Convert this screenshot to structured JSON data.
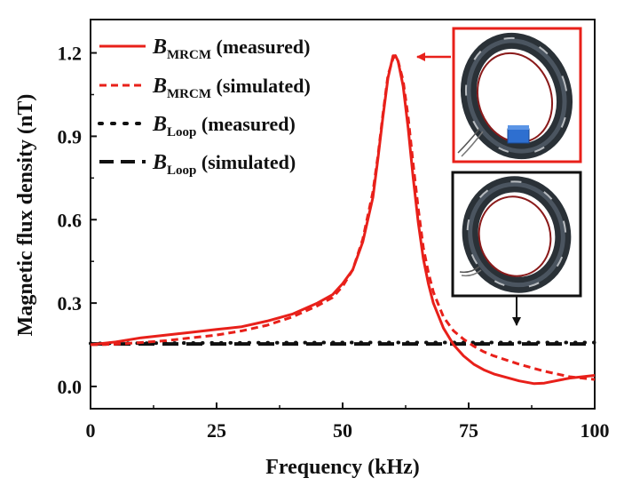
{
  "chart_data": {
    "type": "line",
    "xlabel": "Frequency (kHz)",
    "ylabel": "Magnetic flux density (nT)",
    "xlim": [
      0,
      100
    ],
    "ylim": [
      -0.08,
      1.32
    ],
    "x_ticks": [
      {
        "value": 0,
        "label": "0"
      },
      {
        "value": 25,
        "label": "25"
      },
      {
        "value": 50,
        "label": "50"
      },
      {
        "value": 75,
        "label": "75"
      },
      {
        "value": 100,
        "label": "100"
      }
    ],
    "y_ticks": [
      {
        "value": 0.0,
        "label": "0.0"
      },
      {
        "value": 0.3,
        "label": "0.3"
      },
      {
        "value": 0.6,
        "label": "0.6"
      },
      {
        "value": 0.9,
        "label": "0.9"
      },
      {
        "value": 1.2,
        "label": "1.2"
      }
    ],
    "legend_position": "top-left",
    "series": [
      {
        "name": "B_MRCM (measured)",
        "legend_symbol": "B",
        "legend_subscript": "MRCM",
        "legend_suffix": " (measured)",
        "color": "#e8201a",
        "style": "solid",
        "x": [
          0,
          5,
          10,
          15,
          20,
          25,
          30,
          35,
          40,
          45,
          48,
          50,
          52,
          54,
          56,
          57,
          58,
          59,
          60,
          60.5,
          61,
          62,
          63,
          64,
          65,
          66,
          67,
          68,
          70,
          72,
          74,
          76,
          78,
          80,
          85,
          88,
          90,
          95,
          100
        ],
        "y": [
          0.15,
          0.16,
          0.175,
          0.185,
          0.195,
          0.205,
          0.215,
          0.235,
          0.26,
          0.3,
          0.33,
          0.37,
          0.42,
          0.52,
          0.68,
          0.82,
          0.97,
          1.11,
          1.19,
          1.19,
          1.17,
          1.08,
          0.93,
          0.75,
          0.59,
          0.46,
          0.37,
          0.3,
          0.21,
          0.15,
          0.11,
          0.08,
          0.06,
          0.045,
          0.02,
          0.01,
          0.012,
          0.03,
          0.04
        ]
      },
      {
        "name": "B_MRCM (simulated)",
        "legend_symbol": "B",
        "legend_subscript": "MRCM",
        "legend_suffix": " (simulated)",
        "color": "#e8201a",
        "style": "dashed",
        "x": [
          0,
          5,
          10,
          15,
          20,
          25,
          30,
          35,
          40,
          45,
          48,
          50,
          52,
          54,
          56,
          57,
          58,
          59,
          60,
          60.5,
          61,
          62,
          63,
          64,
          65,
          66,
          67,
          68,
          70,
          72,
          74,
          76,
          78,
          80,
          85,
          90,
          95,
          100
        ],
        "y": [
          0.15,
          0.152,
          0.158,
          0.165,
          0.175,
          0.185,
          0.2,
          0.22,
          0.25,
          0.29,
          0.32,
          0.36,
          0.42,
          0.53,
          0.7,
          0.83,
          0.98,
          1.12,
          1.18,
          1.19,
          1.17,
          1.1,
          0.97,
          0.8,
          0.64,
          0.5,
          0.41,
          0.34,
          0.25,
          0.2,
          0.17,
          0.145,
          0.125,
          0.11,
          0.08,
          0.055,
          0.035,
          0.025
        ]
      },
      {
        "name": "B_Loop (measured)",
        "legend_symbol": "B",
        "legend_subscript": "Loop",
        "legend_suffix": " (measured)",
        "color": "#111111",
        "style": "dotted",
        "x": [
          0,
          25,
          50,
          75,
          100
        ],
        "y": [
          0.155,
          0.157,
          0.158,
          0.158,
          0.158
        ]
      },
      {
        "name": "B_Loop (simulated)",
        "legend_symbol": "B",
        "legend_subscript": "Loop",
        "legend_suffix": " (simulated)",
        "color": "#111111",
        "style": "dash",
        "x": [
          0,
          25,
          50,
          75,
          100
        ],
        "y": [
          0.153,
          0.153,
          0.153,
          0.153,
          0.153
        ]
      }
    ],
    "insets": [
      {
        "name": "MRCM coil photo",
        "frame_color": "#e8201a"
      },
      {
        "name": "Loop coil photo",
        "frame_color": "#111111"
      }
    ]
  }
}
